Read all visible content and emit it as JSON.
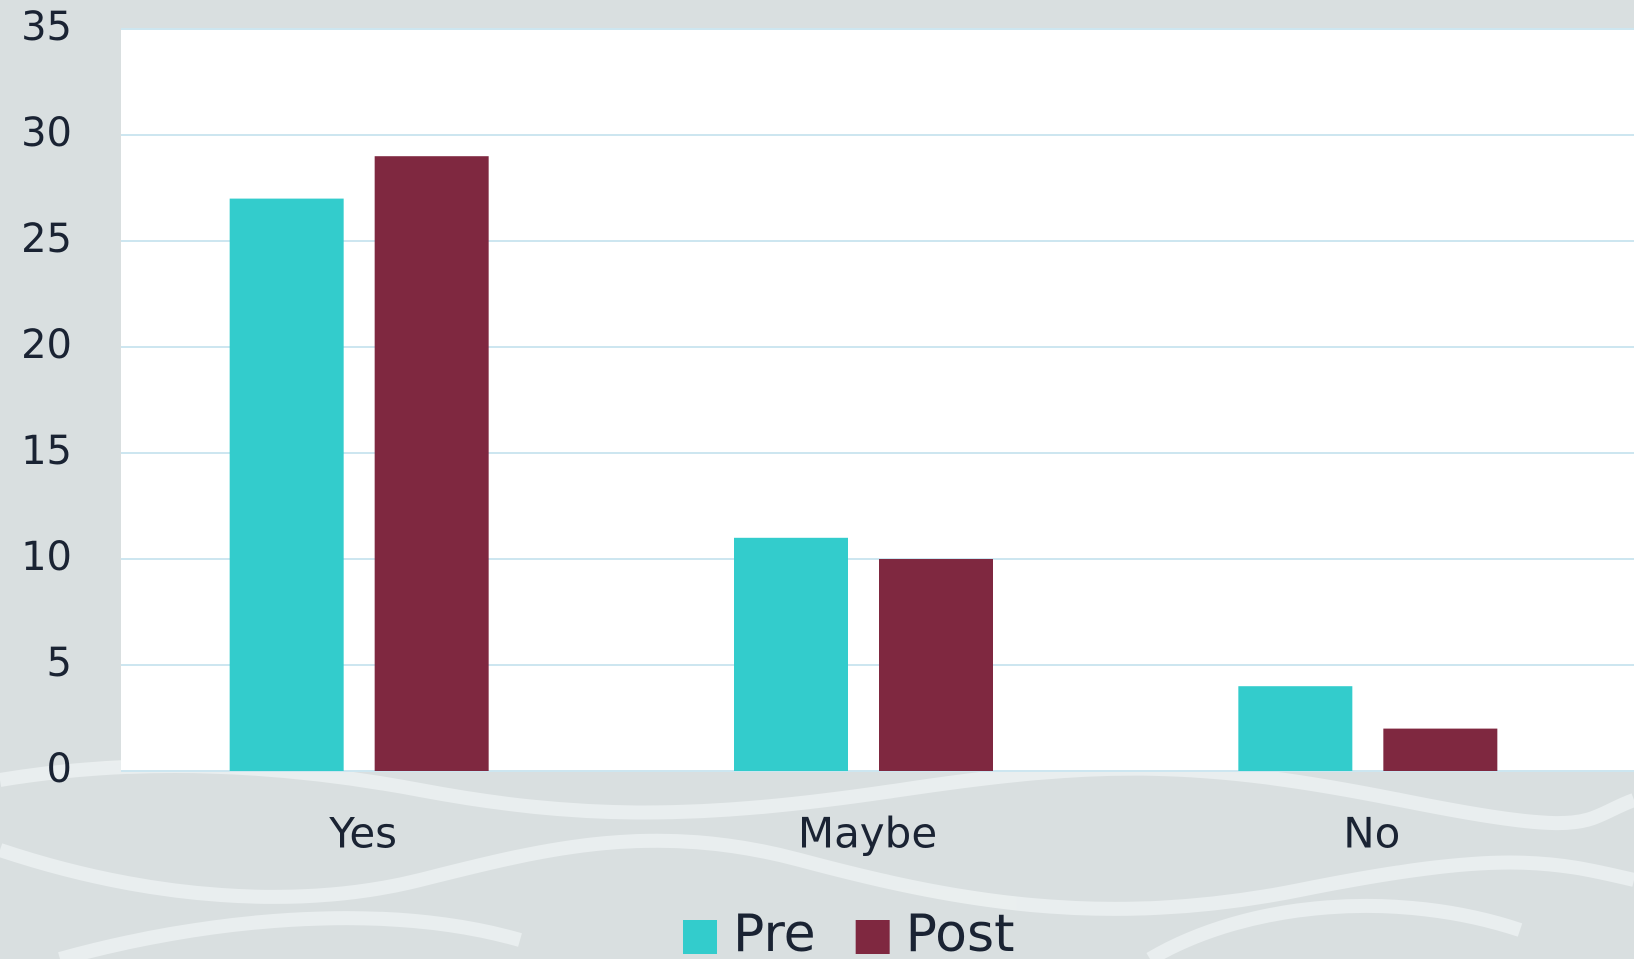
{
  "chart_data": {
    "type": "bar",
    "categories": [
      "Yes",
      "Maybe",
      "No"
    ],
    "series": [
      {
        "name": "Pre",
        "color": "#33cccc",
        "values": [
          27,
          11,
          4
        ]
      },
      {
        "name": "Post",
        "color": "#7f2840",
        "values": [
          29,
          10,
          2
        ]
      }
    ],
    "ylim": [
      0,
      35
    ],
    "yticks": [
      0,
      5,
      10,
      15,
      20,
      25,
      30,
      35
    ],
    "grid": true,
    "legend": "bottom"
  }
}
